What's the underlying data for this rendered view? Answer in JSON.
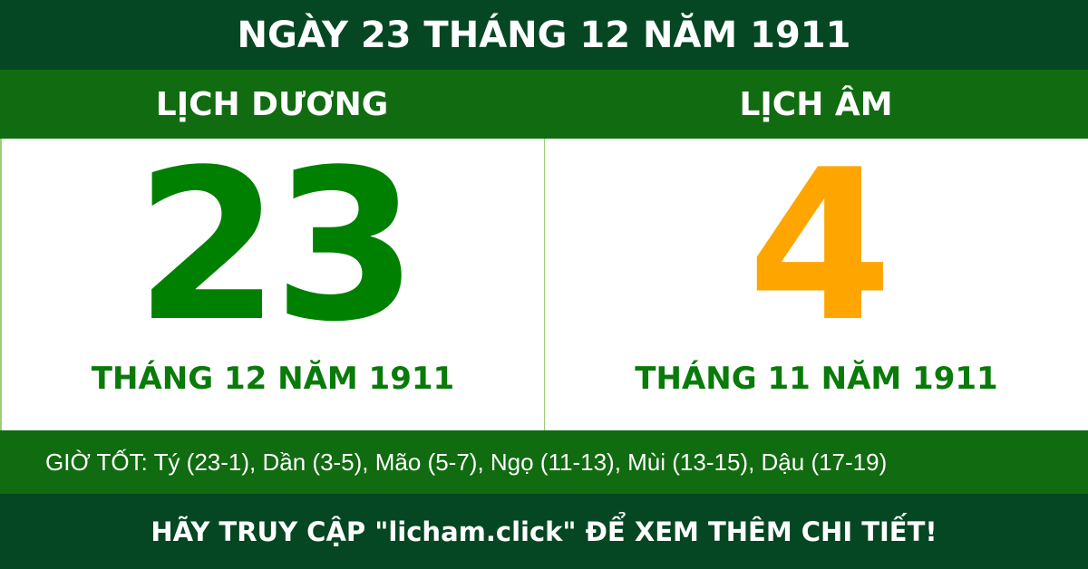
{
  "title": "NGÀY 23 THÁNG 12 NĂM 1911",
  "solar": {
    "label": "LỊCH DƯƠNG",
    "day": "23",
    "month_year": "THÁNG 12 NĂM 1911"
  },
  "lunar": {
    "label": "LỊCH ÂM",
    "day": "4",
    "month_year": "THÁNG 11 NĂM 1911"
  },
  "good_hours": "GIỜ TỐT: Tý (23-1), Dần (3-5), Mão (5-7), Ngọ (11-13), Mùi (13-15), Dậu (17-19)",
  "footer": "HÃY TRUY CẬP \"licham.click\" ĐỂ XEM THÊM CHI TIẾT!",
  "colors": {
    "dark_green": "#044722",
    "green": "#116b10",
    "solar_day": "#008000",
    "lunar_day": "#ffa500"
  }
}
